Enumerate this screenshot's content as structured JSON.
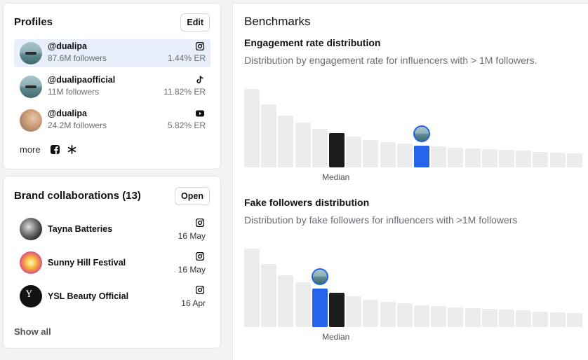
{
  "profiles": {
    "title": "Profiles",
    "edit_label": "Edit",
    "items": [
      {
        "handle": "@dualipa",
        "followers": "87.6M followers",
        "er": "1.44% ER",
        "platform": "instagram-icon",
        "active": true
      },
      {
        "handle": "@dualipaofficial",
        "followers": "11M followers",
        "er": "11.82% ER",
        "platform": "tiktok-icon",
        "active": false
      },
      {
        "handle": "@dualipa",
        "followers": "24.2M followers",
        "er": "5.82% ER",
        "platform": "youtube-icon",
        "active": false
      }
    ],
    "more_label": "more",
    "more_icons": [
      "facebook-icon",
      "snapchat-icon"
    ]
  },
  "brands": {
    "title": "Brand collaborations (13)",
    "open_label": "Open",
    "items": [
      {
        "name": "Tayna Batteries",
        "date": "16 May",
        "platform": "instagram-icon"
      },
      {
        "name": "Sunny Hill Festival",
        "date": "16 May",
        "platform": "instagram-icon"
      },
      {
        "name": "YSL Beauty Official",
        "date": "16 Apr",
        "platform": "instagram-icon"
      }
    ],
    "show_all_label": "Show all"
  },
  "benchmarks": {
    "title": "Benchmarks",
    "engagement": {
      "title": "Engagement rate distribution",
      "description": "Distribution by engagement rate for influencers with > 1M followers.",
      "median_label": "Median",
      "bars": [
        1.0,
        0.8,
        0.66,
        0.57,
        0.49,
        0.44,
        0.39,
        0.35,
        0.32,
        0.3,
        0.28,
        0.27,
        0.25,
        0.24,
        0.23,
        0.22,
        0.21,
        0.2,
        0.19,
        0.18
      ],
      "median_index": 5,
      "self_index": 10
    },
    "fake_followers": {
      "title": "Fake followers distribution",
      "description": "Distribution by fake followers for influencers with >1M followers",
      "median_label": "Median",
      "bars": [
        1.0,
        0.8,
        0.66,
        0.57,
        0.49,
        0.44,
        0.39,
        0.35,
        0.32,
        0.3,
        0.28,
        0.27,
        0.25,
        0.24,
        0.23,
        0.22,
        0.21,
        0.2,
        0.19,
        0.18
      ],
      "median_index": 5,
      "self_index": 4
    },
    "colors": {
      "bar": "#ececee",
      "median": "#1c1c1e",
      "self": "#2563eb"
    }
  }
}
